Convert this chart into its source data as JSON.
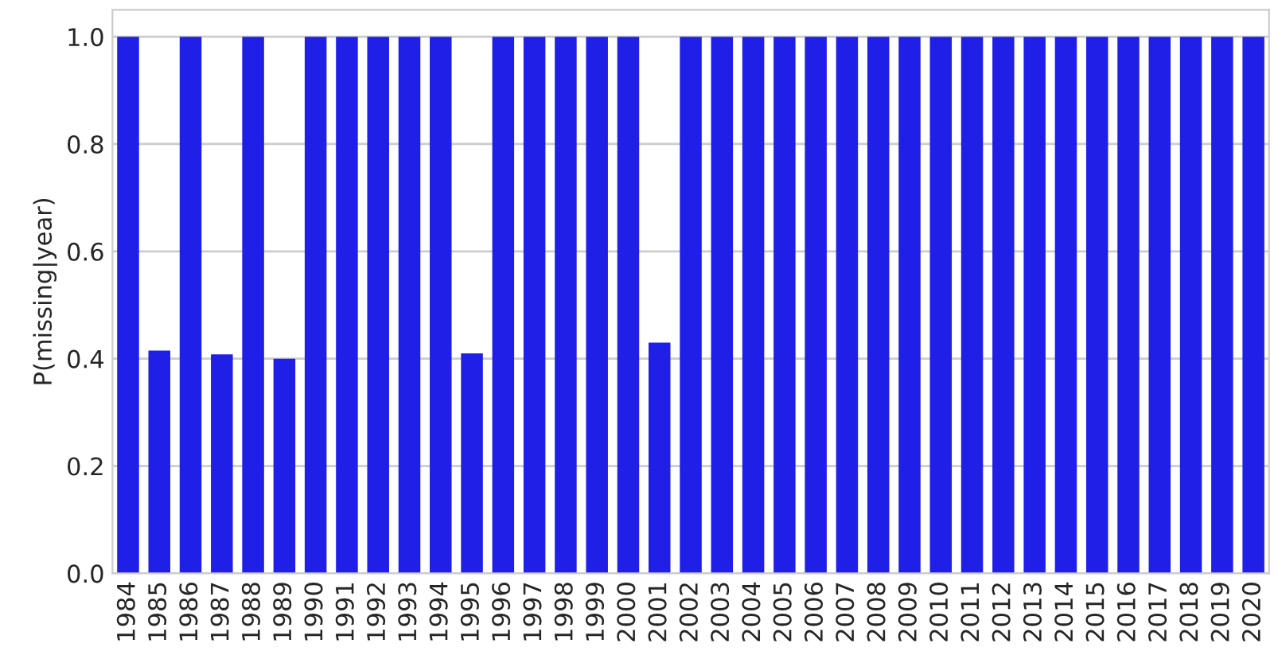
{
  "chart_data": {
    "type": "bar",
    "ylabel": "P(missing|year)",
    "categories": [
      "1984",
      "1985",
      "1986",
      "1987",
      "1988",
      "1989",
      "1990",
      "1991",
      "1992",
      "1993",
      "1994",
      "1995",
      "1996",
      "1997",
      "1998",
      "1999",
      "2000",
      "2001",
      "2002",
      "2003",
      "2004",
      "2005",
      "2006",
      "2007",
      "2008",
      "2009",
      "2010",
      "2011",
      "2012",
      "2013",
      "2014",
      "2015",
      "2016",
      "2017",
      "2018",
      "2019",
      "2020"
    ],
    "values": [
      1.0,
      0.415,
      1.0,
      0.408,
      1.0,
      0.4,
      1.0,
      1.0,
      1.0,
      1.0,
      1.0,
      0.41,
      1.0,
      1.0,
      1.0,
      1.0,
      1.0,
      0.43,
      1.0,
      1.0,
      1.0,
      1.0,
      1.0,
      1.0,
      1.0,
      1.0,
      1.0,
      1.0,
      1.0,
      1.0,
      1.0,
      1.0,
      1.0,
      1.0,
      1.0,
      1.0,
      1.0
    ],
    "color": "#1f1fe8",
    "ylim": [
      0,
      1.05
    ],
    "yticks": [
      {
        "value": 0,
        "label": "0.0"
      },
      {
        "value": 0.2,
        "label": "0.2"
      },
      {
        "value": 0.4,
        "label": "0.4"
      },
      {
        "value": 0.6,
        "label": "0.6"
      },
      {
        "value": 0.8,
        "label": "0.8"
      },
      {
        "value": 1.0,
        "label": "1.0"
      }
    ],
    "grid": "y",
    "legend": false
  }
}
